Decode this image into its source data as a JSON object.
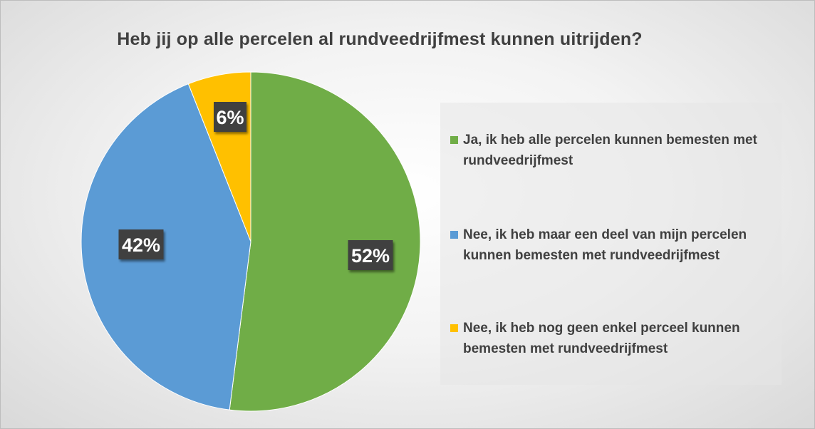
{
  "chart_data": {
    "type": "pie",
    "title": "Heb jij op alle percelen al rundveedrijfmest kunnen uitrijden?",
    "slices": [
      {
        "label": "Ja, ik heb alle percelen kunnen bemesten met rundveedrijfmest",
        "value": 52,
        "value_label": "52%",
        "color": "#70ad47"
      },
      {
        "label": "Nee, ik heb maar een deel van mijn percelen kunnen bemesten met rundveedrijfmest",
        "value": 42,
        "value_label": "42%",
        "color": "#5b9bd5"
      },
      {
        "label": "Nee, ik heb nog geen enkel perceel kunnen bemesten met rundveedrijfmest",
        "value": 6,
        "value_label": "6%",
        "color": "#ffc000"
      }
    ],
    "legend_placement": "right",
    "start_angle": "12 o'clock, clockwise"
  }
}
